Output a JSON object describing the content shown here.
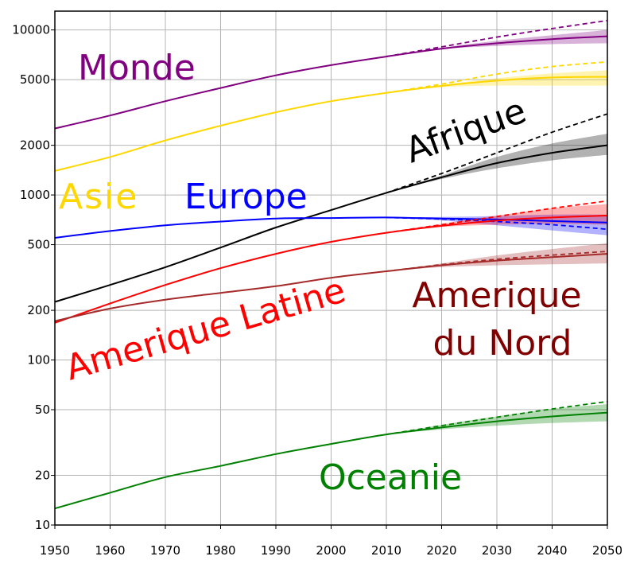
{
  "chart_data": {
    "type": "line",
    "title": "",
    "xlabel": "",
    "ylabel": "",
    "y_scale": "log",
    "xlim": [
      1950,
      2050
    ],
    "ylim": [
      10,
      13000
    ],
    "grid": true,
    "legend": "none",
    "x_ticks": [
      1950,
      1960,
      1970,
      1980,
      1990,
      2000,
      2010,
      2020,
      2030,
      2040,
      2050
    ],
    "y_ticks": [
      10,
      20,
      50,
      100,
      200,
      500,
      1000,
      2000,
      5000,
      10000
    ],
    "projection_start": 2010,
    "series": [
      {
        "name": "Monde",
        "color": "#800080",
        "x": [
          1950,
          1960,
          1970,
          1980,
          1990,
          2000,
          2010,
          2020,
          2030,
          2040,
          2050
        ],
        "values": [
          2530,
          3030,
          3700,
          4450,
          5310,
          6120,
          6900,
          7700,
          8300,
          8800,
          9150
        ],
        "high": [
          null,
          null,
          null,
          null,
          null,
          null,
          6900,
          7900,
          9050,
          10200,
          11400
        ],
        "band_low": [
          null,
          null,
          null,
          null,
          null,
          null,
          6900,
          7650,
          8000,
          8200,
          8300
        ],
        "band_high": [
          null,
          null,
          null,
          null,
          null,
          null,
          6900,
          7800,
          8600,
          9300,
          10000
        ]
      },
      {
        "name": "Asie",
        "color": "#ffd700",
        "x": [
          1950,
          1960,
          1970,
          1980,
          1990,
          2000,
          2010,
          2020,
          2030,
          2040,
          2050
        ],
        "values": [
          1400,
          1700,
          2140,
          2630,
          3170,
          3700,
          4160,
          4580,
          4930,
          5150,
          5200
        ],
        "high": [
          null,
          null,
          null,
          null,
          null,
          null,
          4160,
          4700,
          5400,
          6000,
          6400
        ],
        "band_low": [
          null,
          null,
          null,
          null,
          null,
          null,
          4160,
          4500,
          4600,
          4600,
          4600
        ],
        "band_high": [
          null,
          null,
          null,
          null,
          null,
          null,
          4160,
          4650,
          5100,
          5450,
          5700
        ]
      },
      {
        "name": "Afrique",
        "color": "#000000",
        "x": [
          1950,
          1960,
          1970,
          1980,
          1990,
          2000,
          2010,
          2020,
          2030,
          2040,
          2050
        ],
        "values": [
          225,
          285,
          365,
          480,
          635,
          810,
          1030,
          1280,
          1560,
          1800,
          2000
        ],
        "high": [
          null,
          null,
          null,
          null,
          null,
          null,
          1030,
          1350,
          1800,
          2400,
          3100
        ],
        "band_low": [
          null,
          null,
          null,
          null,
          null,
          null,
          1030,
          1250,
          1450,
          1620,
          1750
        ],
        "band_high": [
          null,
          null,
          null,
          null,
          null,
          null,
          1030,
          1310,
          1700,
          2050,
          2350
        ]
      },
      {
        "name": "Europe",
        "color": "#0000ff",
        "x": [
          1950,
          1960,
          1970,
          1980,
          1990,
          2000,
          2010,
          2020,
          2030,
          2040,
          2050
        ],
        "values": [
          550,
          605,
          655,
          690,
          720,
          725,
          730,
          720,
          710,
          695,
          680
        ],
        "high": [
          null,
          null,
          null,
          null,
          null,
          null,
          730,
          715,
          690,
          660,
          620
        ],
        "band_low": [
          null,
          null,
          null,
          null,
          null,
          null,
          730,
          700,
          655,
          610,
          570
        ],
        "band_high": [
          null,
          null,
          null,
          null,
          null,
          null,
          730,
          735,
          745,
          760,
          760
        ]
      },
      {
        "name": "Amerique Latine",
        "color": "#ff0000",
        "x": [
          1950,
          1960,
          1970,
          1980,
          1990,
          2000,
          2010,
          2020,
          2030,
          2040,
          2050
        ],
        "values": [
          168,
          220,
          285,
          360,
          440,
          520,
          590,
          650,
          700,
          730,
          750
        ],
        "high": [
          null,
          null,
          null,
          null,
          null,
          null,
          590,
          660,
          740,
          830,
          920
        ],
        "band_low": [
          null,
          null,
          null,
          null,
          null,
          null,
          590,
          640,
          660,
          670,
          660
        ],
        "band_high": [
          null,
          null,
          null,
          null,
          null,
          null,
          590,
          670,
          750,
          830,
          880
        ]
      },
      {
        "name": "Amerique du Nord",
        "color": "#a52a2a",
        "x": [
          1950,
          1960,
          1970,
          1980,
          1990,
          2000,
          2010,
          2020,
          2030,
          2040,
          2050
        ],
        "values": [
          172,
          205,
          232,
          255,
          280,
          315,
          345,
          375,
          400,
          420,
          440
        ],
        "high": [
          null,
          null,
          null,
          null,
          null,
          null,
          345,
          378,
          408,
          432,
          455
        ],
        "band_low": [
          null,
          null,
          null,
          null,
          null,
          null,
          345,
          365,
          375,
          380,
          385
        ],
        "band_high": [
          null,
          null,
          null,
          null,
          null,
          null,
          345,
          385,
          430,
          470,
          510
        ]
      },
      {
        "name": "Oceanie",
        "color": "#008000",
        "x": [
          1950,
          1960,
          1970,
          1980,
          1990,
          2000,
          2010,
          2020,
          2030,
          2040,
          2050
        ],
        "values": [
          12.6,
          15.7,
          19.5,
          22.8,
          26.9,
          31.0,
          35.4,
          39.0,
          42.5,
          45.5,
          48.0
        ],
        "high": [
          null,
          null,
          null,
          null,
          null,
          null,
          35.4,
          40.0,
          45.0,
          50.5,
          56.0
        ],
        "band_low": [
          null,
          null,
          null,
          null,
          null,
          null,
          35.4,
          38.0,
          40.0,
          41.5,
          42.5
        ],
        "band_high": [
          null,
          null,
          null,
          null,
          null,
          null,
          35.4,
          40.5,
          45.5,
          50.5,
          54.0
        ]
      }
    ],
    "labels": [
      {
        "text": "Monde",
        "color": "#800080"
      },
      {
        "text": "Asie",
        "color": "#ffd700"
      },
      {
        "text": "Europe",
        "color": "#0000ff"
      },
      {
        "text": "Afrique",
        "color": "#000000"
      },
      {
        "text": "Amerique Latine",
        "color": "#ff0000"
      },
      {
        "text": "Amerique",
        "color": "#800000"
      },
      {
        "text": "du Nord",
        "color": "#800000"
      },
      {
        "text": "Oceanie",
        "color": "#008000"
      }
    ]
  }
}
